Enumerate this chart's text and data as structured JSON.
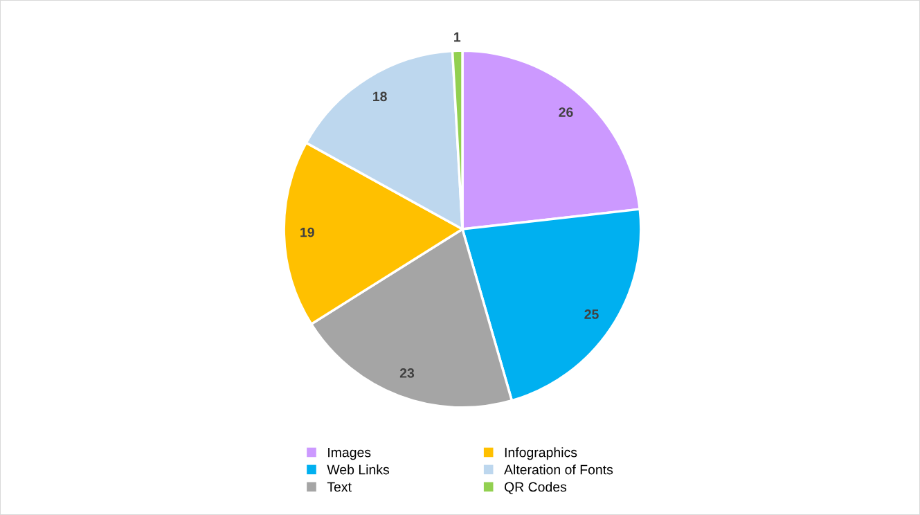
{
  "chart_data": {
    "type": "pie",
    "categories": [
      "Images",
      "Web Links",
      "Text",
      "Infographics",
      "Alteration of Fonts",
      "QR Codes"
    ],
    "values": [
      26,
      25,
      23,
      19,
      18,
      1
    ],
    "colors": [
      "#cc99ff",
      "#00b0f0",
      "#a5a5a5",
      "#ffc000",
      "#bdd7ee",
      "#92d050"
    ],
    "data_labels": true,
    "legend": "bottom"
  }
}
